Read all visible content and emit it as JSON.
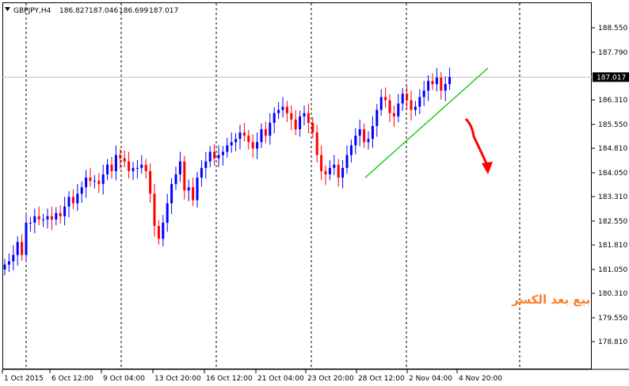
{
  "header": {
    "symbol": "GBPJPY,H4",
    "open": "186.827",
    "high": "187.046",
    "low": "186.699",
    "close": "187.017",
    "menu_icon": "triangle-down-icon"
  },
  "annotation": {
    "text": "بيع بعد الكسر",
    "color": "#ff7f27"
  },
  "colors": {
    "bull": "#0000ff",
    "bear": "#ff0000",
    "trendline": "#22cc22",
    "arrow": "#ff0000",
    "grid": "#000000",
    "current_price_line": "#c0c0c0",
    "current_price_bg": "#000000"
  },
  "chart_data": {
    "type": "candlestick",
    "symbol": "GBPJPY",
    "timeframe": "H4",
    "current_price": "187.017",
    "y_ticks": [
      "188.550",
      "187.790",
      "187.017",
      "186.310",
      "185.550",
      "184.810",
      "184.050",
      "183.310",
      "182.550",
      "181.810",
      "181.050",
      "180.310",
      "179.550",
      "178.810"
    ],
    "y_range": [
      178.81,
      188.95
    ],
    "x_ticks": [
      "1 Oct 2015",
      "6 Oct 12:00",
      "9 Oct 04:00",
      "13 Oct 20:00",
      "16 Oct 12:00",
      "21 Oct 04:00",
      "23 Oct 20:00",
      "28 Oct 12:00",
      "2 Nov 04:00",
      "4 Nov 20:00"
    ],
    "grid": "vertical dashed",
    "closes": [
      181.2,
      181.3,
      181.5,
      181.9,
      181.5,
      182.5,
      182.5,
      182.7,
      182.6,
      182.6,
      182.7,
      182.6,
      182.8,
      182.7,
      183.0,
      183.3,
      183.1,
      183.4,
      183.6,
      183.9,
      183.8,
      183.8,
      183.7,
      184.0,
      184.3,
      184.1,
      184.6,
      184.5,
      184.4,
      184.1,
      184.2,
      184.2,
      184.3,
      184.1,
      183.4,
      182.4,
      182.0,
      182.5,
      183.1,
      183.7,
      184.0,
      184.4,
      183.5,
      183.6,
      183.2,
      183.9,
      184.2,
      184.4,
      184.7,
      184.5,
      184.6,
      184.7,
      184.9,
      185.0,
      185.1,
      185.3,
      185.2,
      185.0,
      184.8,
      185.0,
      185.4,
      185.2,
      185.6,
      185.9,
      186.0,
      186.1,
      185.9,
      185.7,
      185.4,
      185.8,
      185.9,
      185.6,
      185.3,
      184.6,
      184.1,
      184.0,
      184.2,
      184.3,
      183.9,
      184.2,
      184.6,
      184.9,
      185.2,
      185.4,
      185.0,
      185.1,
      185.5,
      186.0,
      186.4,
      186.3,
      185.9,
      185.8,
      186.2,
      186.5,
      186.3,
      186.0,
      186.1,
      186.4,
      186.6,
      186.9,
      186.8,
      187.0,
      186.6,
      186.8,
      187.017
    ],
    "trendline": {
      "from": {
        "x": "28 Oct 12:00",
        "y": 183.9
      },
      "to": {
        "x": "4 Nov 20:00",
        "y": 187.3
      }
    }
  }
}
